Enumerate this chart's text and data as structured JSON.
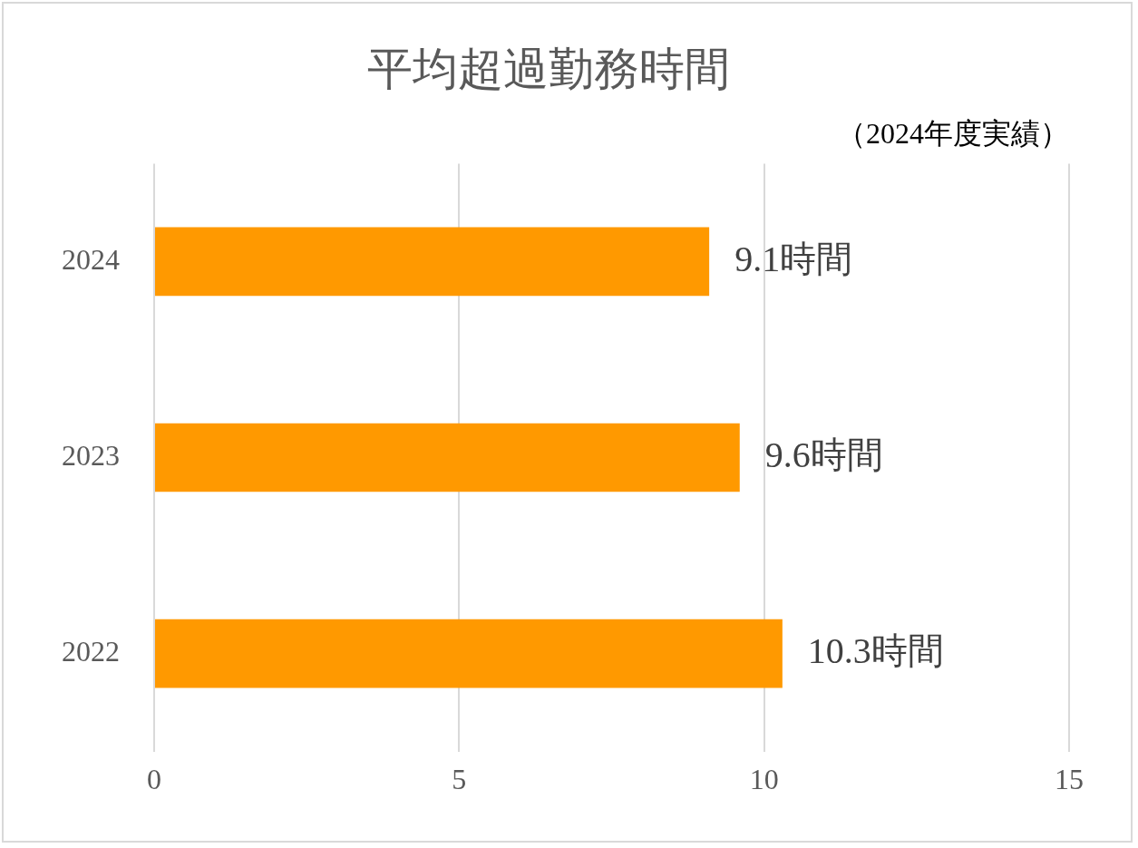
{
  "chart_data": {
    "type": "bar",
    "orientation": "horizontal",
    "title": "平均超過勤務時間",
    "subtitle": "（2024年度実績）",
    "categories": [
      "2024",
      "2023",
      "2022"
    ],
    "values": [
      9.1,
      9.6,
      10.3
    ],
    "value_labels": [
      "9.1時間",
      "9.6時間",
      "10.3時間"
    ],
    "color": "#ff9900",
    "xlim": [
      0,
      15
    ],
    "xticks": [
      0,
      5,
      10,
      15
    ],
    "grid": "x",
    "legend": false
  }
}
